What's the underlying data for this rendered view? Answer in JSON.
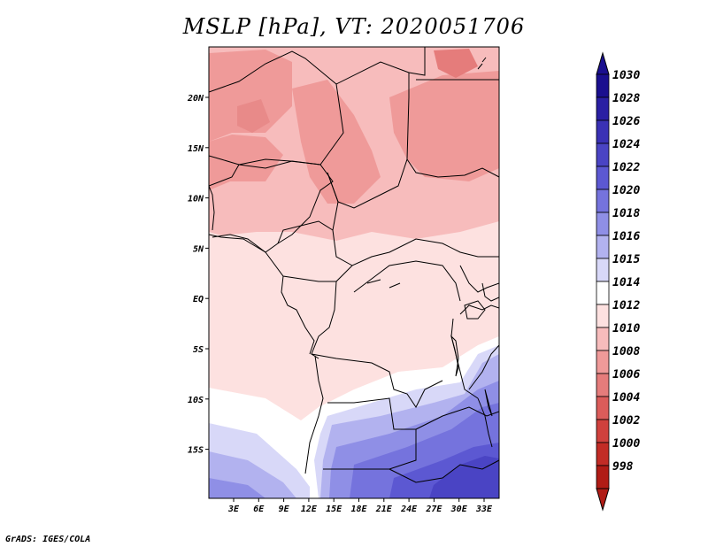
{
  "title": "MSLP [hPa], VT: 2020051706",
  "credit": "GrADS: IGES/COLA",
  "map": {
    "lon_ticks": [
      "3E",
      "6E",
      "9E",
      "12E",
      "15E",
      "18E",
      "21E",
      "24E",
      "27E",
      "30E",
      "33E"
    ],
    "lat_ticks": [
      "20N",
      "15N",
      "10N",
      "5N",
      "EQ",
      "5S",
      "10S",
      "15S"
    ]
  },
  "colorbar": {
    "levels": [
      {
        "label": "1030",
        "color": "#1a0f8f"
      },
      {
        "label": "1028",
        "color": "#2a1fa3"
      },
      {
        "label": "1026",
        "color": "#3a31b5"
      },
      {
        "label": "1024",
        "color": "#4a44c4"
      },
      {
        "label": "1022",
        "color": "#5c58d2"
      },
      {
        "label": "1020",
        "color": "#7573dd"
      },
      {
        "label": "1018",
        "color": "#8f8fe6"
      },
      {
        "label": "1016",
        "color": "#b2b2ef"
      },
      {
        "label": "1015",
        "color": "#d8d8f8"
      },
      {
        "label": "1014",
        "color": "#ffffff"
      },
      {
        "label": "1012",
        "color": "#fde1e0"
      },
      {
        "label": "1010",
        "color": "#f7bcbc"
      },
      {
        "label": "1008",
        "color": "#ef9a99"
      },
      {
        "label": "1006",
        "color": "#e57c7b"
      },
      {
        "label": "1004",
        "color": "#db5c5a"
      },
      {
        "label": "1002",
        "color": "#d0413d"
      },
      {
        "label": "1000",
        "color": "#c22c26"
      },
      {
        "label": "998",
        "color": "#b01c16"
      }
    ],
    "top_color": "#1a0f8f",
    "bottom_color": "#b01c16"
  }
}
